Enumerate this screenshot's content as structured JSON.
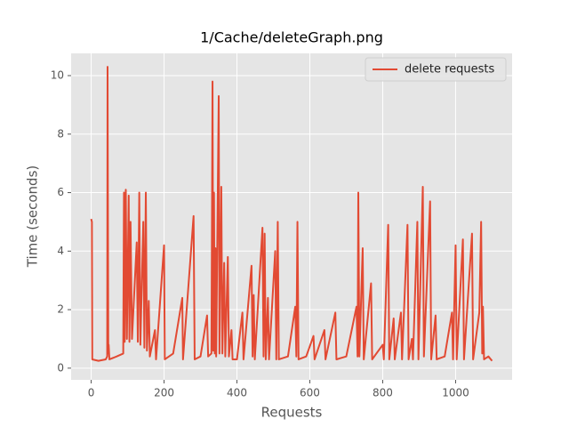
{
  "chart_data": {
    "type": "line",
    "title": "1/Cache/deleteGraph.png",
    "xlabel": "Requests",
    "ylabel": "Time (seconds)",
    "x": [
      0,
      2,
      3,
      20,
      40,
      44,
      45,
      47,
      48,
      50,
      70,
      88,
      90,
      92,
      95,
      98,
      103,
      105,
      108,
      112,
      125,
      128,
      132,
      135,
      143,
      146,
      150,
      153,
      158,
      161,
      175,
      178,
      200,
      202,
      225,
      250,
      252,
      281,
      284,
      300,
      318,
      321,
      330,
      333,
      335,
      337,
      339,
      341,
      343,
      350,
      352,
      357,
      360,
      365,
      368,
      375,
      378,
      385,
      388,
      400,
      415,
      418,
      440,
      443,
      446,
      449,
      470,
      473,
      476,
      479,
      485,
      488,
      505,
      508,
      512,
      515,
      540,
      560,
      563,
      566,
      569,
      590,
      610,
      613,
      640,
      643,
      670,
      673,
      700,
      728,
      731,
      733,
      736,
      745,
      748,
      768,
      771,
      800,
      803,
      815,
      818,
      830,
      833,
      850,
      853,
      868,
      871,
      880,
      883,
      895,
      898,
      910,
      913,
      930,
      933,
      945,
      948,
      970,
      990,
      993,
      1000,
      1003,
      1020,
      1023,
      1045,
      1048,
      1065,
      1070,
      1073,
      1075,
      1078,
      1090,
      1100
    ],
    "series": [
      {
        "name": "delete requests",
        "color": "#e24a33",
        "values": [
          5.1,
          5.0,
          0.3,
          0.25,
          0.3,
          0.4,
          10.3,
          0.5,
          0.8,
          0.3,
          0.4,
          0.5,
          6.0,
          0.9,
          6.1,
          1.0,
          5.9,
          0.9,
          5.0,
          1.0,
          4.3,
          0.9,
          6.0,
          0.8,
          5.0,
          0.7,
          6.0,
          0.6,
          2.3,
          0.4,
          1.3,
          0.3,
          4.2,
          0.3,
          0.5,
          2.4,
          0.3,
          5.2,
          0.3,
          0.4,
          1.8,
          0.4,
          0.5,
          9.8,
          0.6,
          6.0,
          0.5,
          4.1,
          0.4,
          9.3,
          0.5,
          6.2,
          0.5,
          3.6,
          0.4,
          3.8,
          0.4,
          1.3,
          0.3,
          0.3,
          1.9,
          0.3,
          3.5,
          0.4,
          2.5,
          0.3,
          4.8,
          0.4,
          4.6,
          0.3,
          2.4,
          0.3,
          4.0,
          0.3,
          5.0,
          0.3,
          0.4,
          2.1,
          0.4,
          5.0,
          0.3,
          0.4,
          1.1,
          0.3,
          1.3,
          0.3,
          1.9,
          0.3,
          0.4,
          2.1,
          0.4,
          6.0,
          0.4,
          4.1,
          0.3,
          2.9,
          0.3,
          0.8,
          0.3,
          4.9,
          0.3,
          1.7,
          0.3,
          1.9,
          0.3,
          4.9,
          0.3,
          1.0,
          0.3,
          5.0,
          0.3,
          6.2,
          0.4,
          5.7,
          0.3,
          1.8,
          0.3,
          0.4,
          1.9,
          0.3,
          4.2,
          0.3,
          4.4,
          0.3,
          4.6,
          0.3,
          1.9,
          5.0,
          0.5,
          2.1,
          0.3,
          0.4,
          0.25
        ]
      }
    ],
    "xlim": [
      -55,
      1155
    ],
    "ylim": [
      -0.4,
      10.76
    ],
    "xticks": [
      0,
      200,
      400,
      600,
      800,
      1000
    ],
    "yticks": [
      0,
      2,
      4,
      6,
      8,
      10
    ],
    "grid": true,
    "legend": "upper right"
  }
}
